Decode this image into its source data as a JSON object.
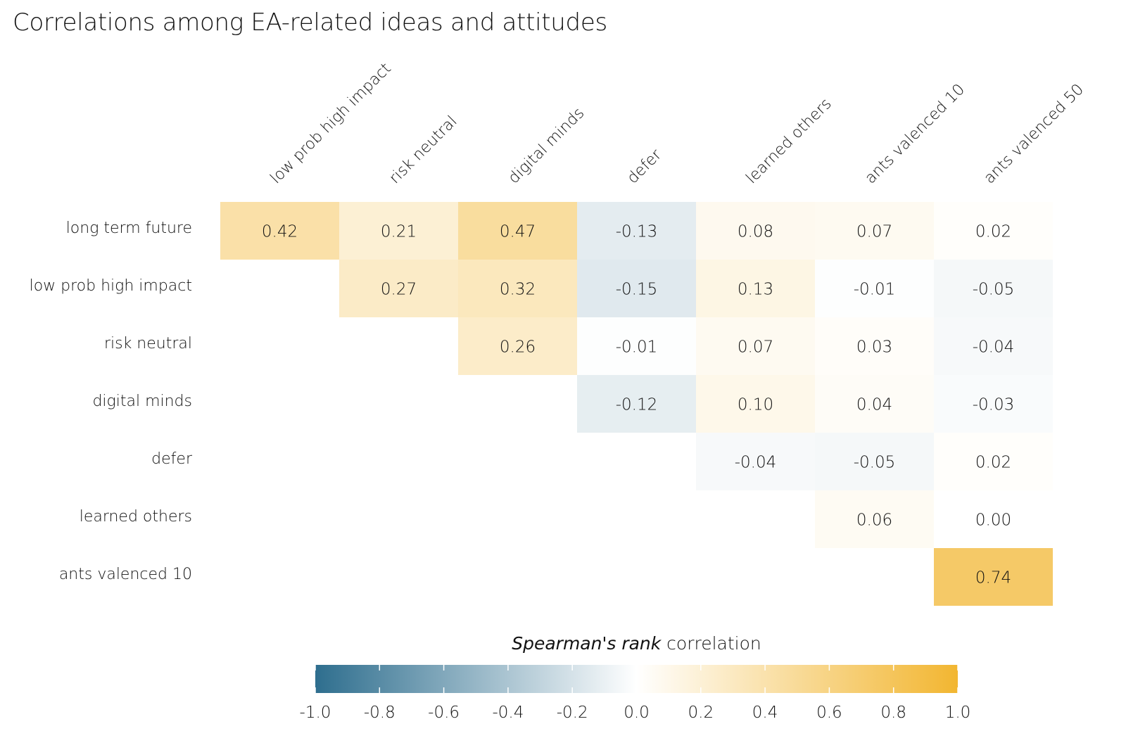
{
  "chart_data": {
    "type": "heatmap",
    "title": "Correlations among EA-related ideas and attitudes",
    "rows": [
      "long term future",
      "low prob high impact",
      "risk neutral",
      "digital minds",
      "defer",
      "learned others",
      "ants valenced 10"
    ],
    "columns": [
      "low prob high impact",
      "risk neutral",
      "digital minds",
      "defer",
      "learned others",
      "ants valenced 10",
      "ants valenced 50"
    ],
    "values": [
      [
        0.42,
        0.21,
        0.47,
        -0.13,
        0.08,
        0.07,
        0.02
      ],
      [
        null,
        0.27,
        0.32,
        -0.15,
        0.13,
        -0.01,
        -0.05
      ],
      [
        null,
        null,
        0.26,
        -0.01,
        0.07,
        0.03,
        -0.04
      ],
      [
        null,
        null,
        null,
        -0.12,
        0.1,
        0.04,
        -0.03
      ],
      [
        null,
        null,
        null,
        null,
        -0.04,
        -0.05,
        0.02
      ],
      [
        null,
        null,
        null,
        null,
        null,
        0.06,
        0.0
      ],
      [
        null,
        null,
        null,
        null,
        null,
        null,
        0.74
      ]
    ],
    "value_labels": [
      [
        "0.42",
        "0.21",
        "0.47",
        "-0.13",
        "0.08",
        "0.07",
        "0.02"
      ],
      [
        null,
        "0.27",
        "0.32",
        "-0.15",
        "0.13",
        "-0.01",
        "-0.05"
      ],
      [
        null,
        null,
        "0.26",
        "-0.01",
        "0.07",
        "0.03",
        "-0.04"
      ],
      [
        null,
        null,
        null,
        "-0.12",
        "0.10",
        "0.04",
        "-0.03"
      ],
      [
        null,
        null,
        null,
        null,
        "-0.04",
        "-0.05",
        "0.02"
      ],
      [
        null,
        null,
        null,
        null,
        null,
        "0.06",
        "0.00"
      ],
      [
        null,
        null,
        null,
        null,
        null,
        null,
        "0.74"
      ]
    ],
    "colorbar": {
      "title_italic": "Spearman's rank",
      "title_rest": " correlation",
      "range": [
        -1.0,
        1.0
      ],
      "ticks": [
        -1.0,
        -0.8,
        -0.6,
        -0.4,
        -0.2,
        0.0,
        0.2,
        0.4,
        0.6,
        0.8,
        1.0
      ],
      "tick_labels": [
        "-1.0",
        "-0.8",
        "-0.6",
        "-0.4",
        "-0.2",
        "0.0",
        "0.2",
        "0.4",
        "0.6",
        "0.8",
        "1.0"
      ],
      "placement": "bottom",
      "colors": {
        "low": "#2e6e8e",
        "mid": "#ffffff",
        "high": "#f2b631"
      }
    }
  }
}
